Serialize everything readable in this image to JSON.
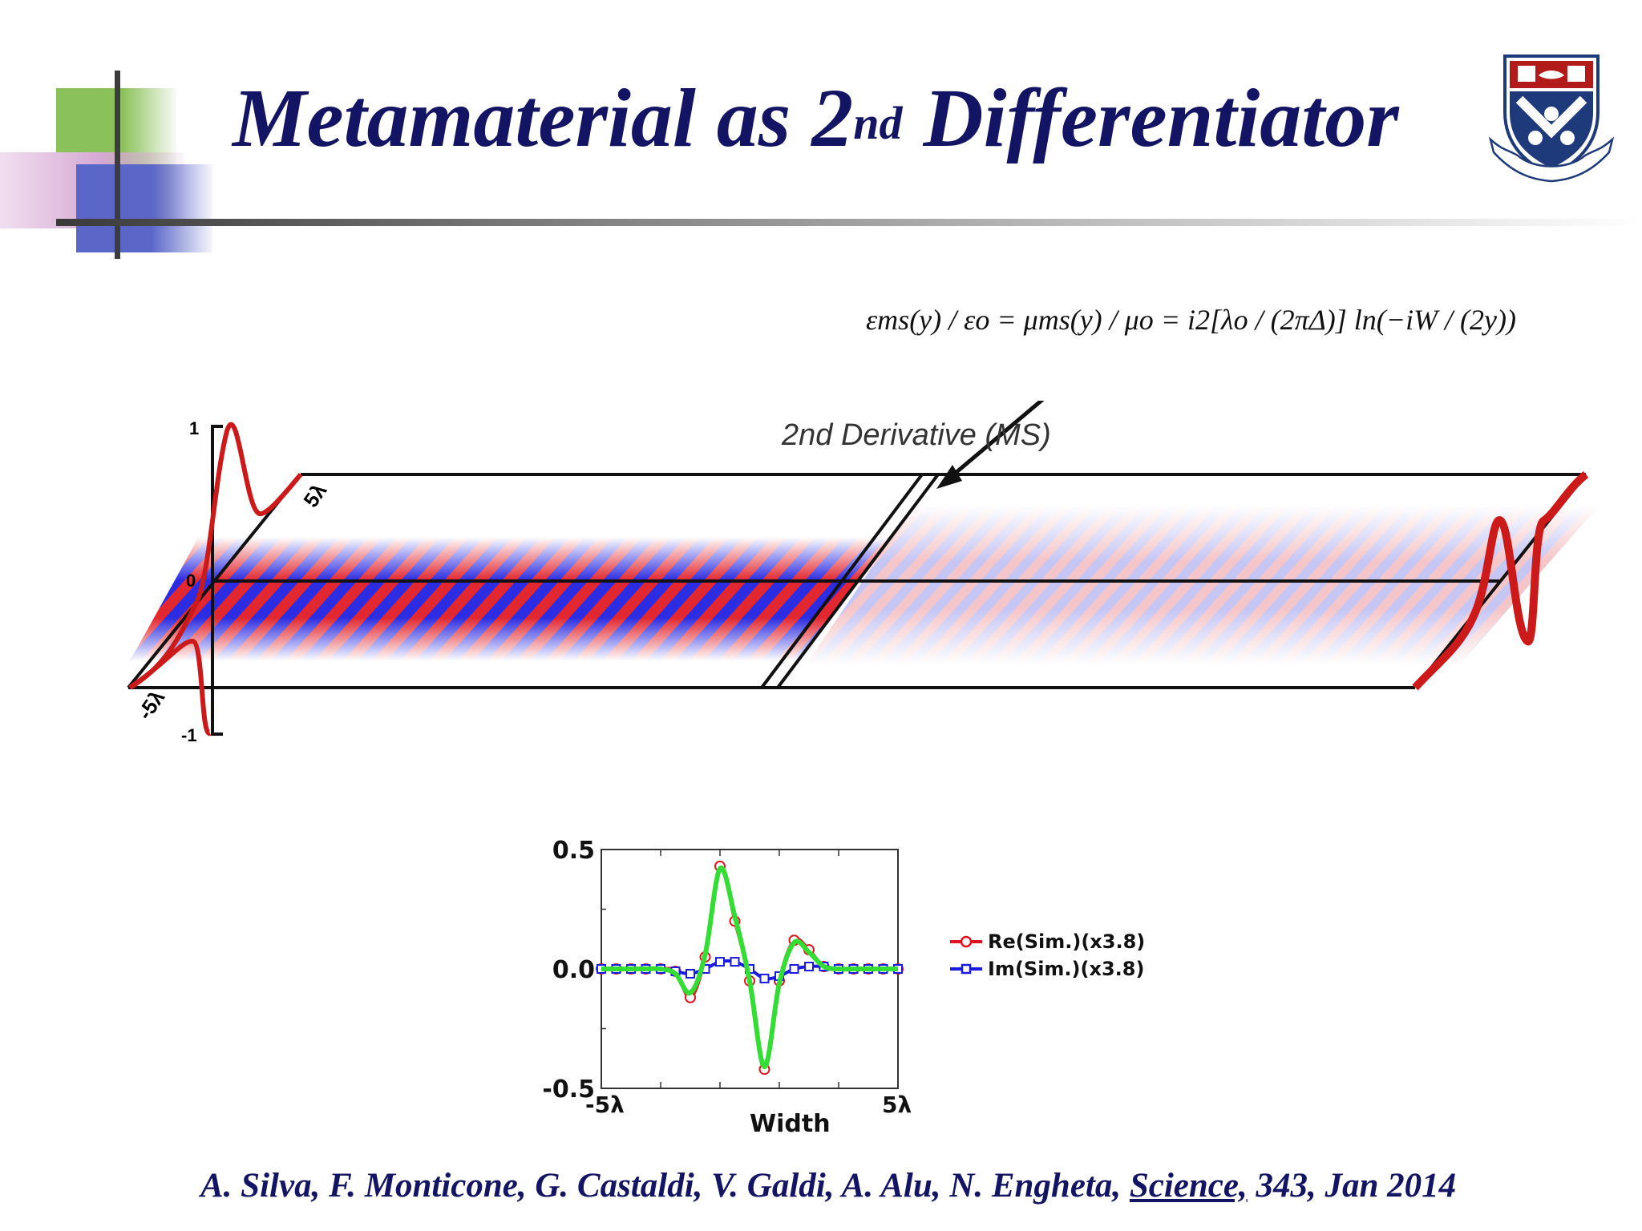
{
  "slide": {
    "title_main": "Metamaterial as 2",
    "title_sup": "nd",
    "title_end": " Differentiator",
    "formula": "εms(y) / εo = μms(y) / μo = i2[λo / (2πΔ)] ln(−iW / (2y))",
    "annotation": "2nd Derivative (MS)",
    "colors": {
      "title": "#141464",
      "green": "#8bc15a",
      "purple": "#b979b7",
      "blue": "#5a66c8",
      "red": "#e0141e",
      "field_blue": "#1a1ae0"
    }
  },
  "field_plot": {
    "left_axis_ticks": [
      "1",
      "0",
      "-1"
    ],
    "width_labels": [
      "5λ",
      "-5λ"
    ]
  },
  "chart_data": {
    "type": "line",
    "x_ticks": [
      "-5λ",
      "5λ"
    ],
    "xlabel": "Width",
    "y_ticks": [
      "0.5",
      "0.0",
      "-0.5"
    ],
    "ylim": [
      -0.5,
      0.5
    ],
    "xlim": [
      -5,
      5
    ],
    "legend_position": "right",
    "series": [
      {
        "name": "Re(Sim.)(x3.8)",
        "color": "#e0141e",
        "marker": "circle",
        "x": [
          -5,
          -4.5,
          -4,
          -3.5,
          -3,
          -2.5,
          -2,
          -1.5,
          -1,
          -0.5,
          0,
          0.5,
          1,
          1.5,
          2,
          2.5,
          3,
          3.5,
          4,
          4.5,
          5
        ],
        "y": [
          0,
          0,
          0,
          0,
          0,
          -0.01,
          -0.12,
          0.05,
          0.43,
          0.2,
          -0.05,
          -0.42,
          -0.05,
          0.12,
          0.08,
          0.01,
          0,
          0,
          0,
          0,
          0
        ]
      },
      {
        "name": "Im(Sim.)(x3.8)",
        "color": "#1a1ae0",
        "marker": "square",
        "x": [
          -5,
          -4.5,
          -4,
          -3.5,
          -3,
          -2.5,
          -2,
          -1.5,
          -1,
          -0.5,
          0,
          0.5,
          1,
          1.5,
          2,
          2.5,
          3,
          3.5,
          4,
          4.5,
          5
        ],
        "y": [
          0,
          0,
          0,
          0,
          0,
          -0.01,
          -0.02,
          0.0,
          0.03,
          0.03,
          0.0,
          -0.04,
          -0.03,
          0.0,
          0.01,
          0.01,
          0,
          0,
          0,
          0,
          0
        ]
      },
      {
        "name": "",
        "color": "#33dd33",
        "marker": "none",
        "x": [
          -5,
          -4.5,
          -4,
          -3.5,
          -3,
          -2.5,
          -2,
          -1.5,
          -1,
          -0.5,
          0,
          0.5,
          1,
          1.5,
          2,
          2.5,
          3,
          3.5,
          4,
          4.5,
          5
        ],
        "y": [
          0,
          0,
          0,
          0,
          0,
          -0.02,
          -0.1,
          0.06,
          0.42,
          0.22,
          -0.05,
          -0.41,
          -0.06,
          0.11,
          0.07,
          0.01,
          0,
          0,
          0,
          0,
          0
        ]
      }
    ]
  },
  "citation": {
    "authors": "A. Silva, F. Monticone, G. Castaldi, V. Galdi, A. Alu, N. Engheta, ",
    "journal": "Science,",
    "rest": " 343, Jan 2014"
  }
}
